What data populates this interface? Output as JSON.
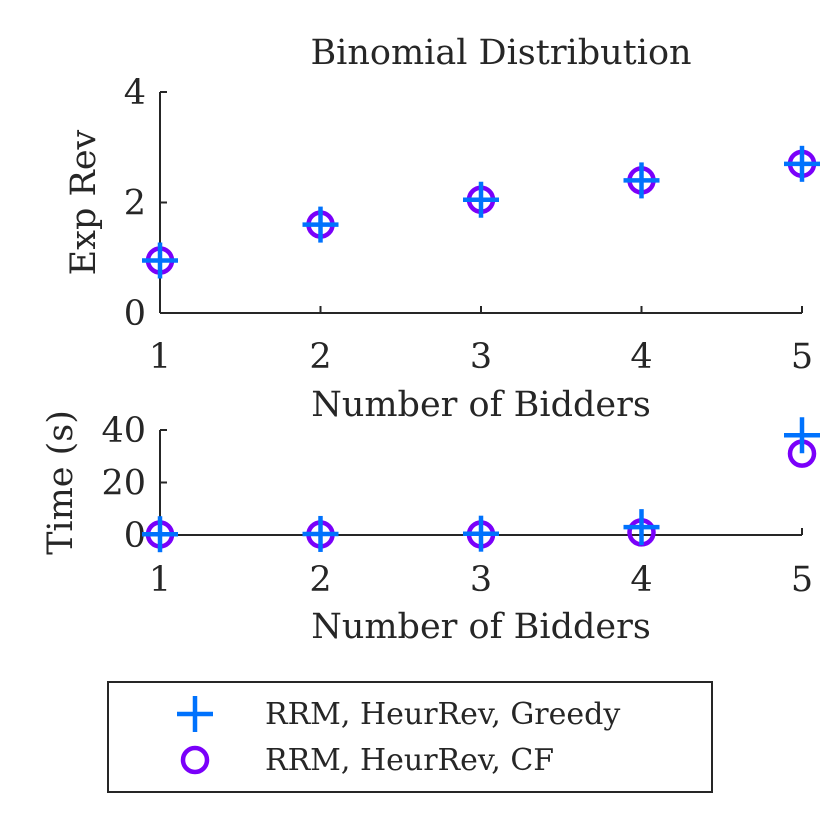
{
  "colors": {
    "greedy": "#0072fd",
    "cf": "#7a00fa",
    "axis": "#262626",
    "text": "#262626",
    "background": "#ffffff"
  },
  "chart_data": [
    {
      "type": "scatter",
      "title": "Binomial Distribution",
      "xlabel": "Number of Bidders",
      "ylabel": "Exp Rev",
      "xlim": [
        1,
        5
      ],
      "ylim": [
        0,
        4
      ],
      "xticks": [
        1,
        2,
        3,
        4,
        5
      ],
      "yticks": [
        0,
        2,
        4
      ],
      "grid": false,
      "series": [
        {
          "name": "RRM, HeurRev, Greedy",
          "marker": "plus",
          "x": [
            1,
            2,
            3,
            4,
            5
          ],
          "y": [
            0.95,
            1.6,
            2.05,
            2.4,
            2.7
          ]
        },
        {
          "name": "RRM, HeurRev, CF",
          "marker": "circle",
          "x": [
            1,
            2,
            3,
            4,
            5
          ],
          "y": [
            0.95,
            1.6,
            2.05,
            2.4,
            2.7
          ]
        }
      ]
    },
    {
      "type": "scatter",
      "title": "",
      "xlabel": "Number of Bidders",
      "ylabel": "Time (s)",
      "xlim": [
        1,
        5
      ],
      "ylim": [
        0,
        40
      ],
      "xticks": [
        1,
        2,
        3,
        4,
        5
      ],
      "yticks": [
        0,
        20,
        40
      ],
      "grid": false,
      "series": [
        {
          "name": "RRM, HeurRev, Greedy",
          "marker": "plus",
          "x": [
            1,
            2,
            3,
            4,
            5
          ],
          "y": [
            0.3,
            0.4,
            0.5,
            3,
            38
          ]
        },
        {
          "name": "RRM, HeurRev, CF",
          "marker": "circle",
          "x": [
            1,
            2,
            3,
            4,
            5
          ],
          "y": [
            0.2,
            0.2,
            0.2,
            1,
            31
          ]
        }
      ]
    }
  ],
  "legend": {
    "placement": "bottom-center",
    "entries": [
      {
        "label": "RRM, HeurRev, Greedy",
        "marker": "plus"
      },
      {
        "label": "RRM, HeurRev, CF",
        "marker": "circle"
      }
    ]
  }
}
